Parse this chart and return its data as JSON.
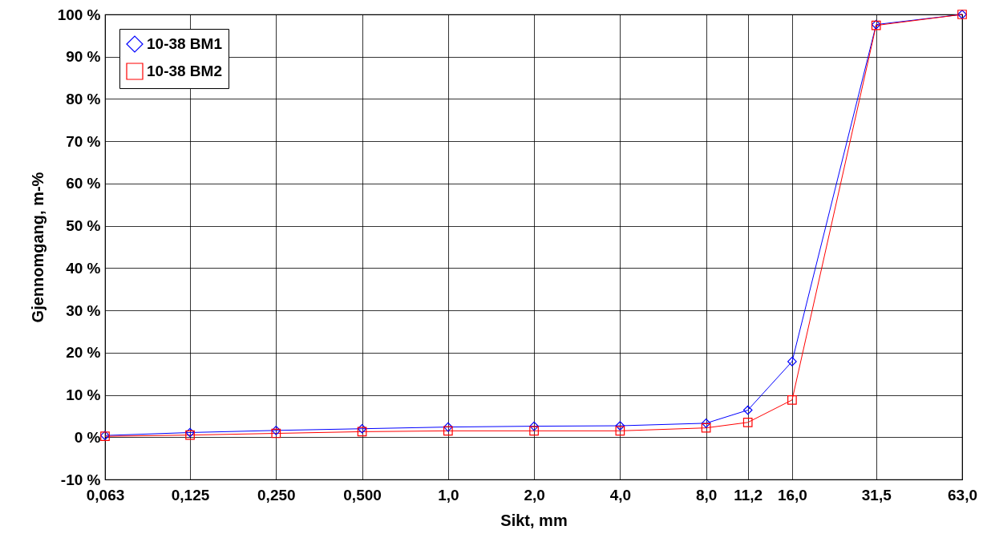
{
  "chart_data": {
    "type": "line",
    "xlabel": "Sikt, mm",
    "ylabel": "Gjennomgang, m-%",
    "x": [
      0.063,
      0.125,
      0.25,
      0.5,
      1,
      2,
      4,
      8,
      11.2,
      16,
      31.5,
      63
    ],
    "series": [
      {
        "name": "10-38 BM1",
        "color": "#0000ff",
        "marker": "diamond",
        "values": [
          0.4,
          1.1,
          1.6,
          2.0,
          2.4,
          2.6,
          2.7,
          3.3,
          6.4,
          17.9,
          97.6,
          100
        ]
      },
      {
        "name": "10-38 BM2",
        "color": "#ff0000",
        "marker": "square",
        "values": [
          0.2,
          0.5,
          0.9,
          1.3,
          1.5,
          1.5,
          1.5,
          2.2,
          3.5,
          8.8,
          97.4,
          100
        ]
      }
    ],
    "log": "x",
    "xlim": [
      0.063,
      63
    ],
    "xticks": [
      {
        "value": 0.063,
        "label": "0,063"
      },
      {
        "value": 0.125,
        "label": "0,125"
      },
      {
        "value": 0.25,
        "label": "0,250"
      },
      {
        "value": 0.5,
        "label": "0,500"
      },
      {
        "value": 1,
        "label": "1,0"
      },
      {
        "value": 2,
        "label": "2,0"
      },
      {
        "value": 4,
        "label": "4,0"
      },
      {
        "value": 8,
        "label": "8,0"
      },
      {
        "value": 11.2,
        "label": "11,2"
      },
      {
        "value": 16,
        "label": "16,0"
      },
      {
        "value": 31.5,
        "label": "31,5"
      },
      {
        "value": 63,
        "label": "63,0"
      }
    ],
    "ylim": [
      -10,
      100
    ],
    "yticks": [
      {
        "value": -10,
        "label": "-10 %"
      },
      {
        "value": 0,
        "label": "0 %"
      },
      {
        "value": 10,
        "label": "10 %"
      },
      {
        "value": 20,
        "label": "20 %"
      },
      {
        "value": 30,
        "label": "30 %"
      },
      {
        "value": 40,
        "label": "40 %"
      },
      {
        "value": 50,
        "label": "50 %"
      },
      {
        "value": 60,
        "label": "60 %"
      },
      {
        "value": 70,
        "label": "70 %"
      },
      {
        "value": 80,
        "label": "80 %"
      },
      {
        "value": 90,
        "label": "90 %"
      },
      {
        "value": 100,
        "label": "100 %"
      }
    ],
    "grid": true,
    "legend": "top left"
  }
}
